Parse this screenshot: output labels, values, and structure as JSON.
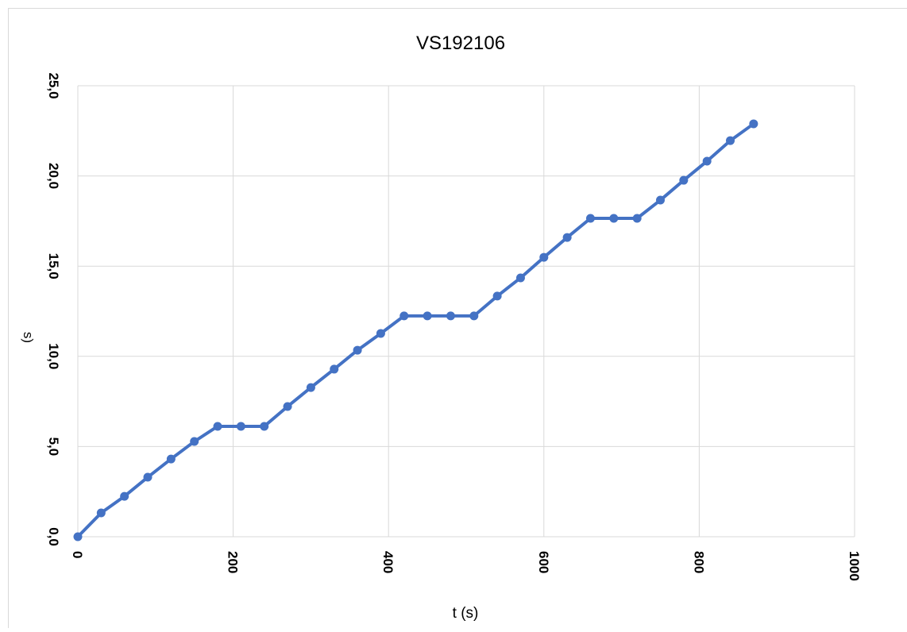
{
  "chart_data": {
    "type": "line",
    "title": "VS192106",
    "x_label": "t (s)",
    "y_label": "s)",
    "x": [
      0,
      30,
      60,
      90,
      120,
      150,
      180,
      210,
      240,
      270,
      300,
      330,
      360,
      390,
      420,
      450,
      480,
      510,
      540,
      570,
      600,
      630,
      660,
      690,
      720,
      750,
      780,
      810,
      840,
      870
    ],
    "series": [
      {
        "name": "s",
        "color": "#4472c4",
        "values": [
          0,
          1.32,
          2.24,
          3.3,
          4.31,
          5.28,
          6.12,
          6.12,
          6.12,
          7.22,
          8.27,
          9.29,
          10.34,
          11.27,
          12.24,
          12.24,
          12.24,
          12.24,
          13.34,
          14.35,
          15.49,
          16.59,
          17.65,
          17.65,
          17.65,
          18.66,
          19.76,
          20.82,
          21.96,
          22.89
        ]
      }
    ],
    "xlim": [
      0,
      1000
    ],
    "xticks": [
      0,
      200,
      400,
      600,
      800,
      1000
    ],
    "ylim": [
      0,
      25
    ],
    "yticks": [
      {
        "value": 0,
        "label": "0,0"
      },
      {
        "value": 5,
        "label": "5,0"
      },
      {
        "value": 10,
        "label": "10,0"
      },
      {
        "value": 15,
        "label": "15,0"
      },
      {
        "value": 20,
        "label": "20,0"
      },
      {
        "value": 25,
        "label": "25,0"
      }
    ],
    "grid": true
  }
}
